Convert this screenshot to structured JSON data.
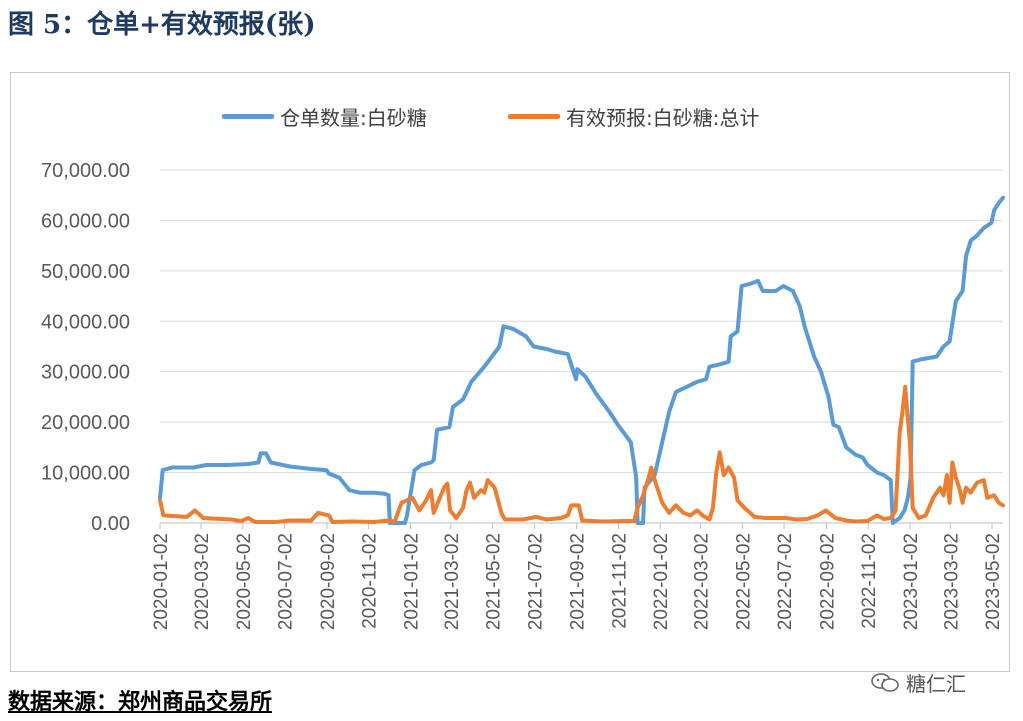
{
  "title": "图 5：仓单+有效预报(张)",
  "source": "数据来源：郑州商品交易所",
  "watermark": "糖仁汇",
  "chart_data": {
    "type": "line",
    "title": "",
    "xlabel": "",
    "ylabel": "",
    "ylim": [
      0,
      70000
    ],
    "xlim": [
      "2020-01-02",
      "2023-05-18"
    ],
    "yticks": [
      0,
      10000,
      20000,
      30000,
      40000,
      50000,
      60000,
      70000
    ],
    "ytick_labels": [
      "0.00",
      "10,000.00",
      "20,000.00",
      "30,000.00",
      "40,000.00",
      "50,000.00",
      "60,000.00",
      "70,000.00"
    ],
    "xtick_labels": [
      "2020-01-02",
      "2020-03-02",
      "2020-05-02",
      "2020-07-02",
      "2020-09-02",
      "2020-11-02",
      "2021-01-02",
      "2021-03-02",
      "2021-05-02",
      "2021-07-02",
      "2021-09-02",
      "2021-11-02",
      "2022-01-02",
      "2022-03-02",
      "2022-05-02",
      "2022-07-02",
      "2022-09-02",
      "2022-11-02",
      "2023-01-02",
      "2023-03-02",
      "2023-05-02"
    ],
    "grid": "horizontal",
    "legend_position": "top",
    "series": [
      {
        "name": "仓单数量:白砂糖",
        "color": "#5b9bd5",
        "points": [
          [
            "2020-01-02",
            5000
          ],
          [
            "2020-01-06",
            10500
          ],
          [
            "2020-01-20",
            11000
          ],
          [
            "2020-02-20",
            11000
          ],
          [
            "2020-03-10",
            11500
          ],
          [
            "2020-04-10",
            11500
          ],
          [
            "2020-05-10",
            11700
          ],
          [
            "2020-05-25",
            12000
          ],
          [
            "2020-05-28",
            13800
          ],
          [
            "2020-06-05",
            13800
          ],
          [
            "2020-06-12",
            12000
          ],
          [
            "2020-07-10",
            11200
          ],
          [
            "2020-08-10",
            10700
          ],
          [
            "2020-09-01",
            10500
          ],
          [
            "2020-09-05",
            9800
          ],
          [
            "2020-09-20",
            9000
          ],
          [
            "2020-10-05",
            6500
          ],
          [
            "2020-10-20",
            6000
          ],
          [
            "2020-11-10",
            6000
          ],
          [
            "2020-11-25",
            5800
          ],
          [
            "2020-12-01",
            5500
          ],
          [
            "2020-12-03",
            0
          ],
          [
            "2020-12-25",
            0
          ],
          [
            "2020-12-28",
            1500
          ],
          [
            "2021-01-08",
            10500
          ],
          [
            "2021-01-18",
            11500
          ],
          [
            "2021-02-01",
            12000
          ],
          [
            "2021-02-05",
            12500
          ],
          [
            "2021-02-10",
            18500
          ],
          [
            "2021-02-28",
            19000
          ],
          [
            "2021-03-05",
            23000
          ],
          [
            "2021-03-20",
            24500
          ],
          [
            "2021-04-01",
            28000
          ],
          [
            "2021-04-20",
            31000
          ],
          [
            "2021-05-01",
            33000
          ],
          [
            "2021-05-12",
            35000
          ],
          [
            "2021-05-18",
            39000
          ],
          [
            "2021-06-01",
            38500
          ],
          [
            "2021-06-20",
            37000
          ],
          [
            "2021-07-01",
            35000
          ],
          [
            "2021-07-20",
            34500
          ],
          [
            "2021-08-01",
            34000
          ],
          [
            "2021-08-20",
            33500
          ],
          [
            "2021-09-01",
            28500
          ],
          [
            "2021-09-03",
            30500
          ],
          [
            "2021-09-15",
            29000
          ],
          [
            "2021-10-01",
            25500
          ],
          [
            "2021-10-20",
            22000
          ],
          [
            "2021-11-01",
            19500
          ],
          [
            "2021-11-20",
            16000
          ],
          [
            "2021-11-28",
            9000
          ],
          [
            "2021-11-30",
            0
          ],
          [
            "2021-12-08",
            0
          ],
          [
            "2021-12-10",
            7000
          ],
          [
            "2021-12-25",
            9500
          ],
          [
            "2022-01-05",
            16000
          ],
          [
            "2022-01-15",
            22000
          ],
          [
            "2022-01-25",
            26000
          ],
          [
            "2022-02-10",
            27000
          ],
          [
            "2022-02-25",
            28000
          ],
          [
            "2022-03-10",
            28500
          ],
          [
            "2022-03-15",
            31000
          ],
          [
            "2022-04-01",
            31500
          ],
          [
            "2022-04-12",
            32000
          ],
          [
            "2022-04-15",
            37000
          ],
          [
            "2022-04-25",
            38000
          ],
          [
            "2022-05-01",
            47000
          ],
          [
            "2022-05-15",
            47500
          ],
          [
            "2022-05-25",
            48000
          ],
          [
            "2022-06-01",
            46000
          ],
          [
            "2022-06-20",
            46000
          ],
          [
            "2022-07-01",
            47000
          ],
          [
            "2022-07-15",
            46000
          ],
          [
            "2022-07-25",
            43000
          ],
          [
            "2022-08-01",
            39000
          ],
          [
            "2022-08-15",
            33000
          ],
          [
            "2022-08-25",
            30000
          ],
          [
            "2022-09-05",
            25000
          ],
          [
            "2022-09-12",
            19500
          ],
          [
            "2022-09-20",
            19000
          ],
          [
            "2022-10-01",
            15000
          ],
          [
            "2022-10-15",
            13500
          ],
          [
            "2022-10-25",
            13000
          ],
          [
            "2022-11-01",
            11500
          ],
          [
            "2022-11-15",
            10000
          ],
          [
            "2022-11-25",
            9500
          ],
          [
            "2022-12-05",
            8500
          ],
          [
            "2022-12-08",
            0
          ],
          [
            "2022-12-18",
            1000
          ],
          [
            "2022-12-25",
            2500
          ],
          [
            "2022-12-30",
            5000
          ],
          [
            "2023-01-03",
            9000
          ],
          [
            "2023-01-06",
            32000
          ],
          [
            "2023-01-20",
            32500
          ],
          [
            "2023-02-10",
            33000
          ],
          [
            "2023-02-20",
            35000
          ],
          [
            "2023-03-01",
            36000
          ],
          [
            "2023-03-10",
            44000
          ],
          [
            "2023-03-20",
            46000
          ],
          [
            "2023-03-25",
            53000
          ],
          [
            "2023-04-01",
            56000
          ],
          [
            "2023-04-10",
            57000
          ],
          [
            "2023-04-20",
            58500
          ],
          [
            "2023-05-01",
            59500
          ],
          [
            "2023-05-05",
            62000
          ],
          [
            "2023-05-12",
            63500
          ],
          [
            "2023-05-18",
            64500
          ]
        ]
      },
      {
        "name": "有效预报:白砂糖:总计",
        "color": "#ed7d31",
        "points": [
          [
            "2020-01-02",
            4500
          ],
          [
            "2020-01-07",
            1500
          ],
          [
            "2020-02-10",
            1200
          ],
          [
            "2020-02-22",
            2500
          ],
          [
            "2020-03-05",
            1000
          ],
          [
            "2020-04-15",
            700
          ],
          [
            "2020-04-30",
            400
          ],
          [
            "2020-05-10",
            1000
          ],
          [
            "2020-05-20",
            200
          ],
          [
            "2020-06-20",
            200
          ],
          [
            "2020-07-10",
            500
          ],
          [
            "2020-08-10",
            500
          ],
          [
            "2020-08-20",
            2000
          ],
          [
            "2020-09-05",
            1500
          ],
          [
            "2020-09-10",
            200
          ],
          [
            "2020-10-10",
            300
          ],
          [
            "2020-11-10",
            200
          ],
          [
            "2020-12-01",
            500
          ],
          [
            "2020-12-10",
            300
          ],
          [
            "2020-12-20",
            4000
          ],
          [
            "2021-01-05",
            5000
          ],
          [
            "2021-01-15",
            2500
          ],
          [
            "2021-01-25",
            4500
          ],
          [
            "2021-02-01",
            6500
          ],
          [
            "2021-02-05",
            2000
          ],
          [
            "2021-02-20",
            7000
          ],
          [
            "2021-02-25",
            7800
          ],
          [
            "2021-03-01",
            2500
          ],
          [
            "2021-03-10",
            1000
          ],
          [
            "2021-03-20",
            3000
          ],
          [
            "2021-03-25",
            6500
          ],
          [
            "2021-03-30",
            8000
          ],
          [
            "2021-04-05",
            5000
          ],
          [
            "2021-04-15",
            6500
          ],
          [
            "2021-04-20",
            6000
          ],
          [
            "2021-04-25",
            8500
          ],
          [
            "2021-05-05",
            7000
          ],
          [
            "2021-05-15",
            2000
          ],
          [
            "2021-05-20",
            700
          ],
          [
            "2021-06-15",
            700
          ],
          [
            "2021-07-05",
            1200
          ],
          [
            "2021-07-20",
            700
          ],
          [
            "2021-08-10",
            1000
          ],
          [
            "2021-08-20",
            1500
          ],
          [
            "2021-08-25",
            3500
          ],
          [
            "2021-09-05",
            3500
          ],
          [
            "2021-09-10",
            500
          ],
          [
            "2021-10-10",
            300
          ],
          [
            "2021-11-15",
            400
          ],
          [
            "2021-11-25",
            400
          ],
          [
            "2021-11-30",
            3000
          ],
          [
            "2021-12-08",
            5500
          ],
          [
            "2021-12-15",
            8500
          ],
          [
            "2021-12-20",
            11000
          ],
          [
            "2021-12-25",
            8500
          ],
          [
            "2022-01-05",
            4000
          ],
          [
            "2022-01-15",
            2000
          ],
          [
            "2022-01-25",
            3500
          ],
          [
            "2022-02-05",
            2000
          ],
          [
            "2022-02-15",
            1500
          ],
          [
            "2022-02-25",
            2500
          ],
          [
            "2022-03-05",
            1500
          ],
          [
            "2022-03-15",
            700
          ],
          [
            "2022-03-20",
            3000
          ],
          [
            "2022-03-25",
            10000
          ],
          [
            "2022-03-30",
            14000
          ],
          [
            "2022-04-05",
            9500
          ],
          [
            "2022-04-12",
            11000
          ],
          [
            "2022-04-20",
            9000
          ],
          [
            "2022-04-25",
            4500
          ],
          [
            "2022-05-05",
            3000
          ],
          [
            "2022-05-20",
            1200
          ],
          [
            "2022-06-05",
            1000
          ],
          [
            "2022-06-20",
            1000
          ],
          [
            "2022-07-05",
            1000
          ],
          [
            "2022-07-20",
            700
          ],
          [
            "2022-08-05",
            800
          ],
          [
            "2022-08-20",
            1500
          ],
          [
            "2022-09-01",
            2500
          ],
          [
            "2022-09-15",
            1000
          ],
          [
            "2022-10-01",
            500
          ],
          [
            "2022-10-15",
            300
          ],
          [
            "2022-11-01",
            400
          ],
          [
            "2022-11-15",
            1500
          ],
          [
            "2022-11-25",
            800
          ],
          [
            "2022-12-05",
            1000
          ],
          [
            "2022-12-12",
            2500
          ],
          [
            "2022-12-18",
            18000
          ],
          [
            "2022-12-22",
            22000
          ],
          [
            "2022-12-26",
            27000
          ],
          [
            "2022-12-29",
            22000
          ],
          [
            "2023-01-02",
            16000
          ],
          [
            "2023-01-06",
            3000
          ],
          [
            "2023-01-15",
            1000
          ],
          [
            "2023-01-25",
            1500
          ],
          [
            "2023-02-05",
            5000
          ],
          [
            "2023-02-15",
            7000
          ],
          [
            "2023-02-20",
            5500
          ],
          [
            "2023-02-25",
            9500
          ],
          [
            "2023-03-01",
            4000
          ],
          [
            "2023-03-05",
            12000
          ],
          [
            "2023-03-10",
            9000
          ],
          [
            "2023-03-15",
            7000
          ],
          [
            "2023-03-20",
            4000
          ],
          [
            "2023-03-25",
            7000
          ],
          [
            "2023-04-01",
            6000
          ],
          [
            "2023-04-10",
            8000
          ],
          [
            "2023-04-20",
            8500
          ],
          [
            "2023-04-25",
            5000
          ],
          [
            "2023-05-05",
            5500
          ],
          [
            "2023-05-12",
            4000
          ],
          [
            "2023-05-18",
            3500
          ]
        ]
      }
    ]
  }
}
